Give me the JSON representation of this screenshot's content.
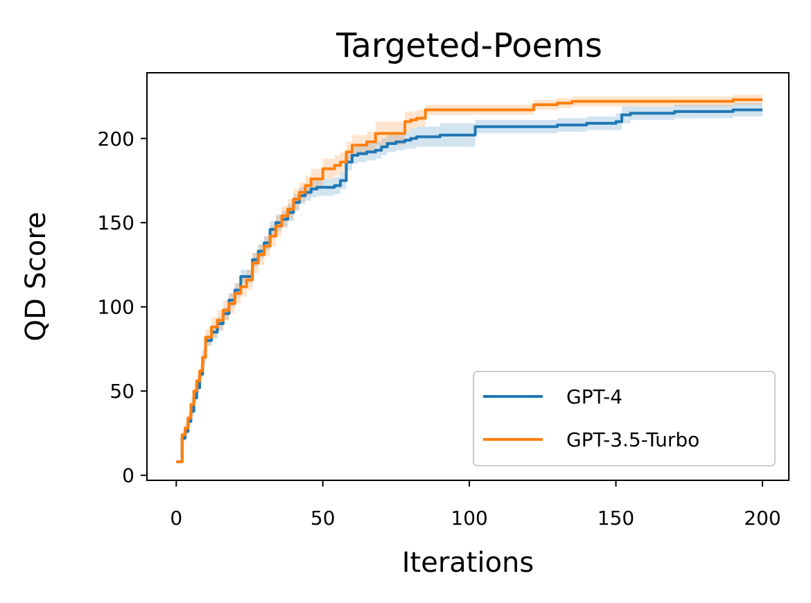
{
  "chart_data": {
    "type": "line",
    "title": "Targeted-Poems",
    "xlabel": "Iterations",
    "ylabel": "QD Score",
    "xlim": [
      -10,
      209
    ],
    "ylim": [
      -3,
      239
    ],
    "xticks": [
      0,
      50,
      100,
      150,
      200
    ],
    "yticks": [
      0,
      50,
      100,
      150,
      200
    ],
    "grid": false,
    "legend_position": "lower-right",
    "series": [
      {
        "name": "GPT-4",
        "color": "#1f77b4",
        "band_color": "#1f77b4",
        "x": [
          0,
          2,
          3,
          4,
          5,
          6,
          7,
          8,
          9,
          10,
          12,
          14,
          16,
          18,
          20,
          22,
          24,
          26,
          28,
          30,
          32,
          34,
          36,
          38,
          40,
          42,
          44,
          46,
          48,
          50,
          52,
          54,
          56,
          58,
          60,
          62,
          65,
          68,
          70,
          72,
          75,
          78,
          80,
          82,
          85,
          90,
          95,
          100,
          102,
          105,
          110,
          120,
          130,
          140,
          145,
          150,
          152,
          155,
          160,
          170,
          180,
          190,
          200
        ],
        "y": [
          8,
          22,
          26,
          32,
          38,
          46,
          52,
          60,
          70,
          80,
          85,
          90,
          96,
          104,
          110,
          118,
          118,
          128,
          133,
          138,
          146,
          150,
          152,
          156,
          162,
          166,
          168,
          170,
          171,
          171,
          171,
          172,
          175,
          186,
          190,
          191,
          192,
          193,
          195,
          197,
          198,
          199,
          200,
          201,
          201,
          202,
          202,
          202,
          207,
          207,
          207,
          207,
          208,
          209,
          209,
          210,
          214,
          215,
          215,
          216,
          216,
          217,
          217
        ],
        "lower": [
          8,
          20,
          23,
          29,
          35,
          43,
          49,
          57,
          66,
          77,
          81,
          86,
          92,
          100,
          106,
          114,
          114,
          124,
          129,
          134,
          141,
          145,
          147,
          151,
          157,
          161,
          163,
          165,
          166,
          166,
          166,
          167,
          170,
          181,
          185,
          186,
          187,
          188,
          190,
          192,
          193,
          194,
          194,
          195,
          195,
          195,
          195,
          195,
          203,
          203,
          203,
          203,
          204,
          205,
          205,
          205,
          209,
          211,
          211,
          212,
          212,
          213,
          213
        ],
        "upper": [
          8,
          24,
          29,
          35,
          41,
          49,
          55,
          63,
          74,
          83,
          89,
          94,
          100,
          108,
          114,
          122,
          122,
          132,
          137,
          142,
          151,
          155,
          157,
          161,
          167,
          171,
          173,
          175,
          176,
          176,
          176,
          177,
          180,
          191,
          195,
          196,
          197,
          198,
          200,
          202,
          203,
          204,
          206,
          207,
          207,
          209,
          209,
          209,
          211,
          211,
          211,
          211,
          212,
          213,
          213,
          215,
          219,
          219,
          219,
          220,
          220,
          221,
          221
        ]
      },
      {
        "name": "GPT-3.5-Turbo",
        "color": "#ff7f0e",
        "band_color": "#ff7f0e",
        "x": [
          0,
          2,
          3,
          4,
          5,
          6,
          7,
          8,
          9,
          10,
          12,
          14,
          16,
          18,
          20,
          22,
          24,
          26,
          28,
          30,
          32,
          34,
          36,
          38,
          40,
          42,
          44,
          46,
          48,
          50,
          52,
          54,
          56,
          58,
          60,
          62,
          65,
          68,
          70,
          72,
          75,
          78,
          80,
          82,
          85,
          90,
          95,
          100,
          110,
          120,
          122,
          130,
          135,
          140,
          150,
          160,
          170,
          180,
          190,
          200
        ],
        "y": [
          8,
          24,
          28,
          34,
          42,
          50,
          56,
          62,
          70,
          82,
          88,
          92,
          98,
          102,
          108,
          112,
          116,
          126,
          131,
          136,
          142,
          148,
          154,
          158,
          164,
          168,
          172,
          176,
          176,
          182,
          182,
          184,
          186,
          192,
          196,
          196,
          198,
          203,
          203,
          203,
          203,
          210,
          211,
          212,
          217,
          217,
          217,
          217,
          217,
          217,
          220,
          221,
          222,
          222,
          222,
          222,
          222,
          222,
          223,
          223
        ],
        "lower": [
          8,
          22,
          25,
          31,
          38,
          46,
          52,
          58,
          65,
          77,
          82,
          86,
          92,
          96,
          102,
          106,
          110,
          120,
          125,
          130,
          136,
          142,
          148,
          152,
          158,
          162,
          166,
          170,
          170,
          176,
          176,
          178,
          180,
          186,
          190,
          190,
          192,
          196,
          196,
          196,
          196,
          204,
          206,
          207,
          214,
          214,
          214,
          214,
          214,
          214,
          217,
          218,
          219,
          219,
          219,
          219,
          219,
          219,
          220,
          220
        ],
        "upper": [
          8,
          26,
          31,
          37,
          46,
          54,
          60,
          66,
          75,
          87,
          94,
          98,
          104,
          108,
          114,
          118,
          122,
          132,
          137,
          142,
          148,
          154,
          160,
          164,
          170,
          174,
          178,
          182,
          182,
          188,
          188,
          190,
          192,
          198,
          202,
          202,
          204,
          210,
          210,
          210,
          210,
          216,
          216,
          217,
          220,
          220,
          220,
          220,
          220,
          220,
          223,
          224,
          225,
          225,
          225,
          225,
          225,
          225,
          226,
          226
        ]
      }
    ]
  }
}
